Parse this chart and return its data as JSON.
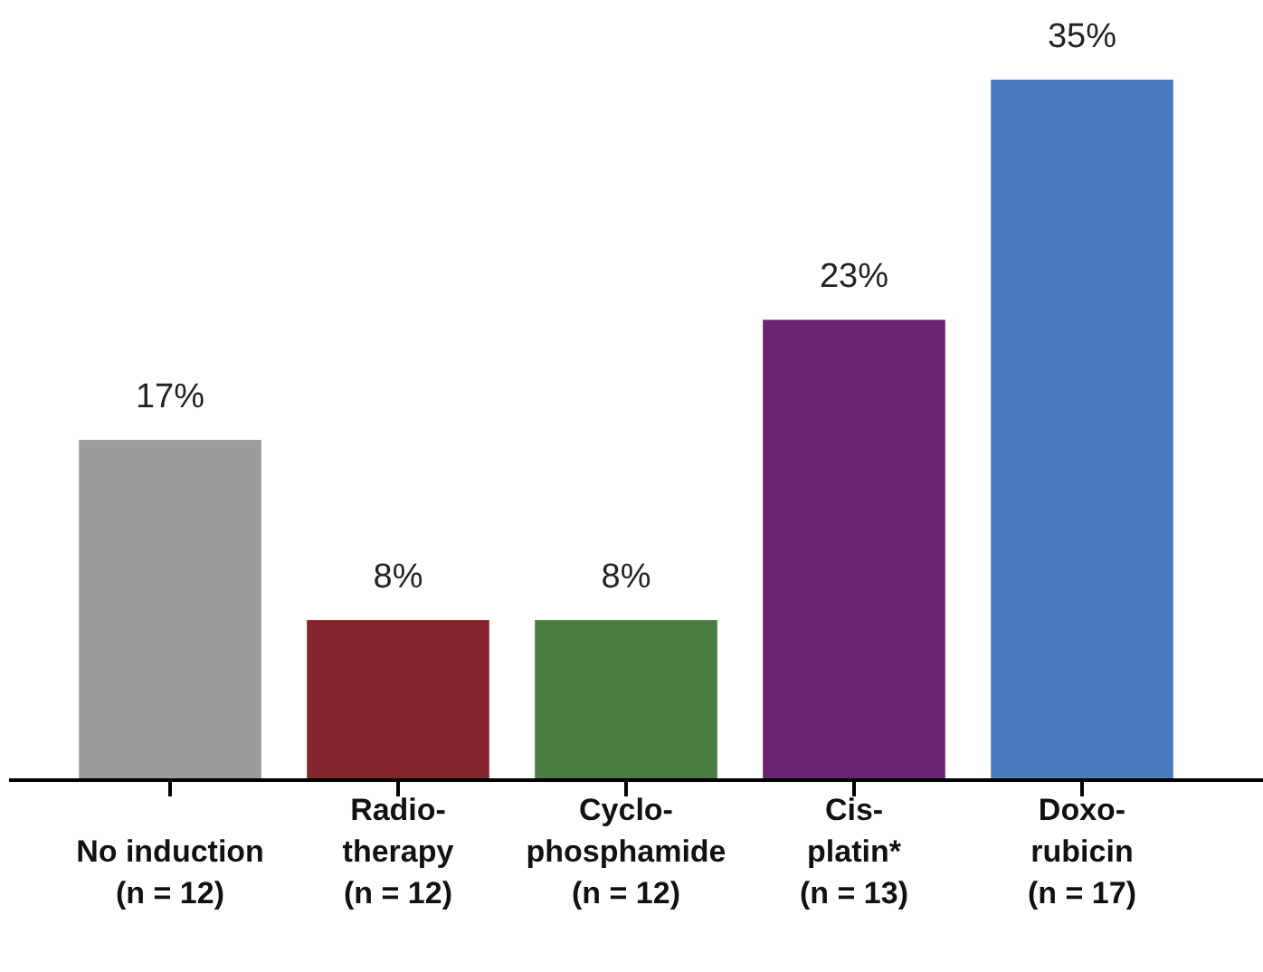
{
  "chart_data": {
    "type": "bar",
    "categories": [
      "No induction\n(n = 12)",
      "Radio-\ntherapy\n(n = 12)",
      "Cyclo-\nphosphamide\n(n = 12)",
      "Cis-\nplatin*\n(n = 13)",
      "Doxo-\nrubicin\n(n = 17)"
    ],
    "values": [
      17,
      8,
      8,
      23,
      35
    ],
    "colors": [
      "#9b9b9b",
      "#84252c",
      "#4a7d3f",
      "#6b2373",
      "#4a7cc1"
    ],
    "value_labels": [
      "17%",
      "8%",
      "8%",
      "23%",
      "35%"
    ]
  }
}
